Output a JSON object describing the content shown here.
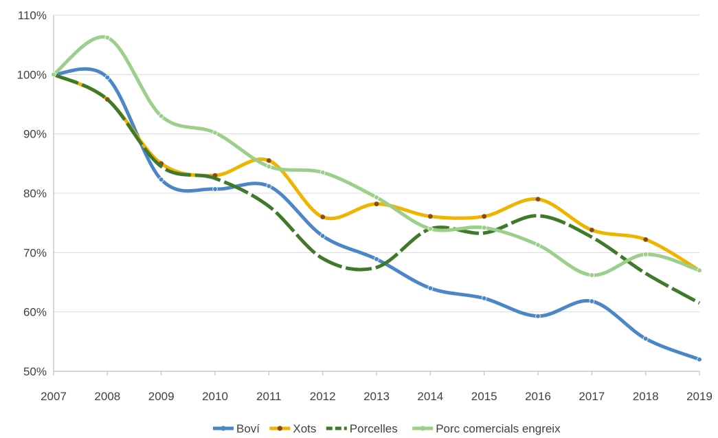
{
  "chart_data": {
    "type": "line",
    "title": "",
    "xlabel": "",
    "ylabel": "",
    "x": [
      "2007",
      "2008",
      "2009",
      "2010",
      "2011",
      "2012",
      "2013",
      "2014",
      "2015",
      "2016",
      "2017",
      "2018",
      "2019"
    ],
    "ylim": [
      50,
      110
    ],
    "yticks": [
      50,
      60,
      70,
      80,
      90,
      100,
      110
    ],
    "ytick_format": "percent",
    "grid": true,
    "smooth": true,
    "legend_position": "bottom",
    "series": [
      {
        "name": "Boví",
        "color": "#4a86c8",
        "dash": "solid",
        "values": [
          100,
          99.5,
          82.3,
          80.7,
          81.2,
          72.8,
          68.9,
          64.0,
          62.3,
          59.3,
          61.8,
          55.5,
          52.0
        ]
      },
      {
        "name": "Xots",
        "color": "#f0b400",
        "dash": "solid",
        "values": [
          100,
          95.8,
          85.0,
          83.0,
          85.5,
          76.0,
          78.2,
          76.1,
          76.1,
          79.0,
          73.8,
          72.2,
          67.0
        ]
      },
      {
        "name": "Porcelles",
        "color": "#3f7a2a",
        "dash": "dashed",
        "values": [
          100,
          95.8,
          84.5,
          82.5,
          77.8,
          69.0,
          67.5,
          74.0,
          73.3,
          76.2,
          72.6,
          66.5,
          61.5
        ]
      },
      {
        "name": "Porc comercials engreix",
        "color": "#9ccf8a",
        "dash": "solid",
        "values": [
          100,
          106.2,
          93.0,
          90.2,
          84.5,
          83.5,
          79.3,
          74.0,
          74.2,
          71.3,
          66.2,
          69.7,
          67.0
        ]
      }
    ]
  }
}
